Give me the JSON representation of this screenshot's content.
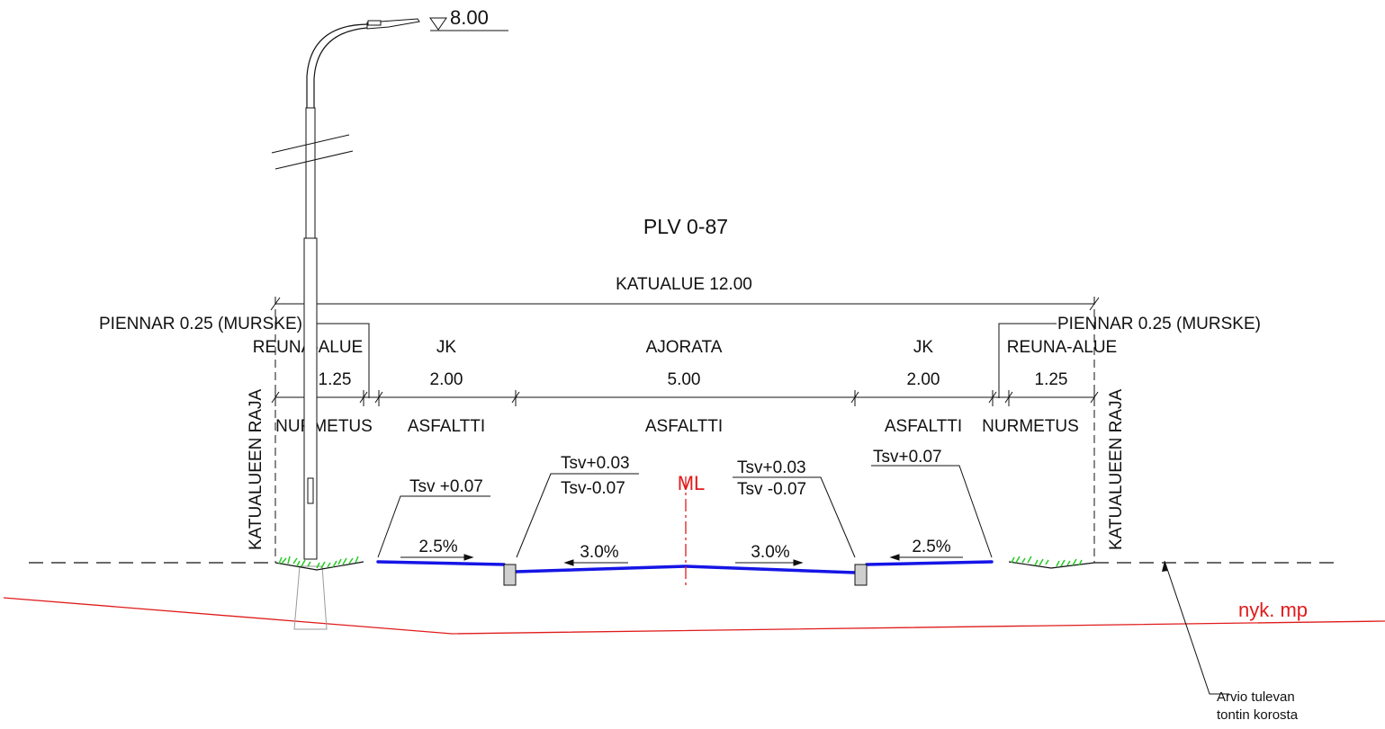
{
  "title": "PLV 0-87",
  "lamp_elevation": "8.00",
  "total_width_label": "KATUALUE  12.00",
  "shoulder_left": "PIENNAR 0.25 (MURSKE)",
  "shoulder_right": "PIENNAR 0.25 (MURSKE)",
  "sections": {
    "left_edge": {
      "name": "REUNA-ALUE",
      "width": "1.25",
      "surface": "NURMETUS"
    },
    "left_walk": {
      "name": "JK",
      "width": "2.00",
      "surface": "ASFALTTI"
    },
    "roadway": {
      "name": "AJORATA",
      "width": "5.00",
      "surface": "ASFALTTI"
    },
    "right_walk": {
      "name": "JK",
      "width": "2.00",
      "surface": "ASFALTTI"
    },
    "right_edge": {
      "name": "REUNA-ALUE",
      "width": "1.25",
      "surface": "NURMETUS"
    }
  },
  "boundary_label": "KATUALUEEN RAJA",
  "heights": {
    "left_walk": "Tsv +0.07",
    "left_curb_top": "Tsv+0.03",
    "left_curb_bottom": "Tsv-0.07",
    "right_curb_top": "Tsv+0.03",
    "right_curb_bottom": "Tsv -0.07",
    "right_walk": "Tsv+0.07"
  },
  "slopes": {
    "left_walk": "2.5%",
    "left_road": "3.0%",
    "right_road": "3.0%",
    "right_walk": "2.5%"
  },
  "centerline_label": "ML",
  "existing_ground_label": "nyk. mp",
  "note": {
    "line1": "Arvio tulevan",
    "line2": "tontin korosta"
  },
  "colors": {
    "pavement": "#1515e6",
    "existing_ground": "#e01b1b",
    "centerline": "#e01b1b",
    "grass": "#22cc22",
    "curb": "#cfcfcf"
  }
}
